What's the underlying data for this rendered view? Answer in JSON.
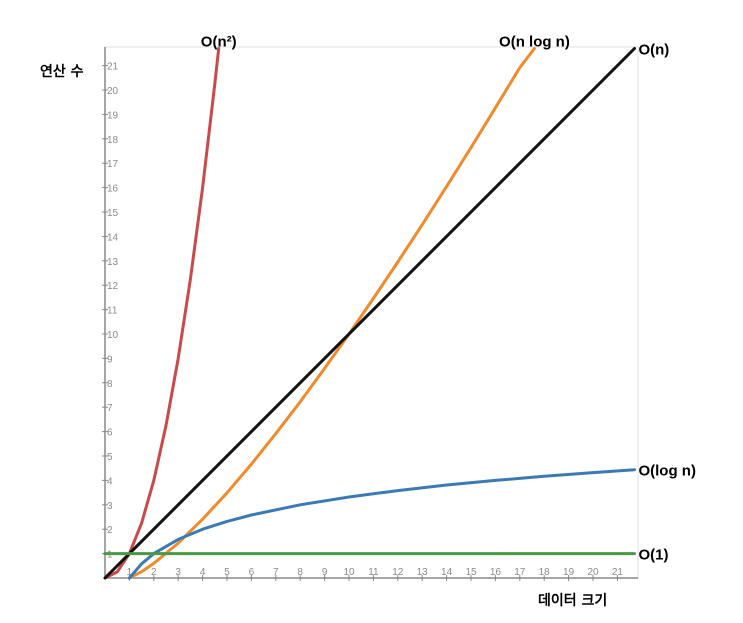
{
  "chart_data": {
    "type": "line",
    "title": "",
    "xlabel": "데이터 크기",
    "ylabel": "연산 수",
    "xlim": [
      0,
      21.8
    ],
    "ylim": [
      0,
      21.8
    ],
    "x_ticks": [
      1,
      2,
      3,
      4,
      5,
      6,
      7,
      8,
      9,
      10,
      11,
      12,
      13,
      14,
      15,
      16,
      17,
      18,
      19,
      20,
      21
    ],
    "y_ticks": [
      1,
      2,
      3,
      4,
      5,
      6,
      7,
      8,
      9,
      10,
      11,
      12,
      13,
      14,
      15,
      16,
      17,
      18,
      19,
      20,
      21
    ],
    "grid": false,
    "legend": "none",
    "series": [
      {
        "name": "O(n²)",
        "color": "#c94a48",
        "x": [
          0,
          0.5,
          1,
          1.5,
          2,
          2.5,
          3,
          3.5,
          4,
          4.5,
          4.66
        ],
        "y": [
          0,
          0.25,
          1,
          2.25,
          4,
          6.25,
          9,
          12.25,
          16,
          20.25,
          21.7
        ]
      },
      {
        "name": "O(n log n)",
        "color": "#f08a2c",
        "x": [
          1,
          1.5,
          2,
          3,
          4,
          5,
          6,
          7,
          8,
          9,
          10,
          11,
          12,
          13,
          14,
          15,
          16,
          17,
          17.6
        ],
        "y": [
          0,
          0.26,
          0.6,
          1.43,
          2.41,
          3.49,
          4.67,
          5.92,
          7.22,
          8.59,
          10,
          11.46,
          12.95,
          14.48,
          16.05,
          17.64,
          19.27,
          20.92,
          21.7
        ]
      },
      {
        "name": "O(n)",
        "color": "#111111",
        "x": [
          0,
          21.7
        ],
        "y": [
          0,
          21.7
        ]
      },
      {
        "name": "O(log n)",
        "color": "#3c7ab6",
        "x": [
          1,
          1.5,
          2,
          3,
          4,
          5,
          6,
          8,
          10,
          12,
          14,
          16,
          18,
          20,
          21.7
        ],
        "y": [
          0,
          0.58,
          1,
          1.58,
          2,
          2.32,
          2.58,
          3,
          3.32,
          3.58,
          3.81,
          4,
          4.17,
          4.32,
          4.44
        ]
      },
      {
        "name": "O(1)",
        "color": "#4a9a44",
        "x": [
          0,
          21.7
        ],
        "y": [
          1,
          1
        ]
      }
    ]
  }
}
